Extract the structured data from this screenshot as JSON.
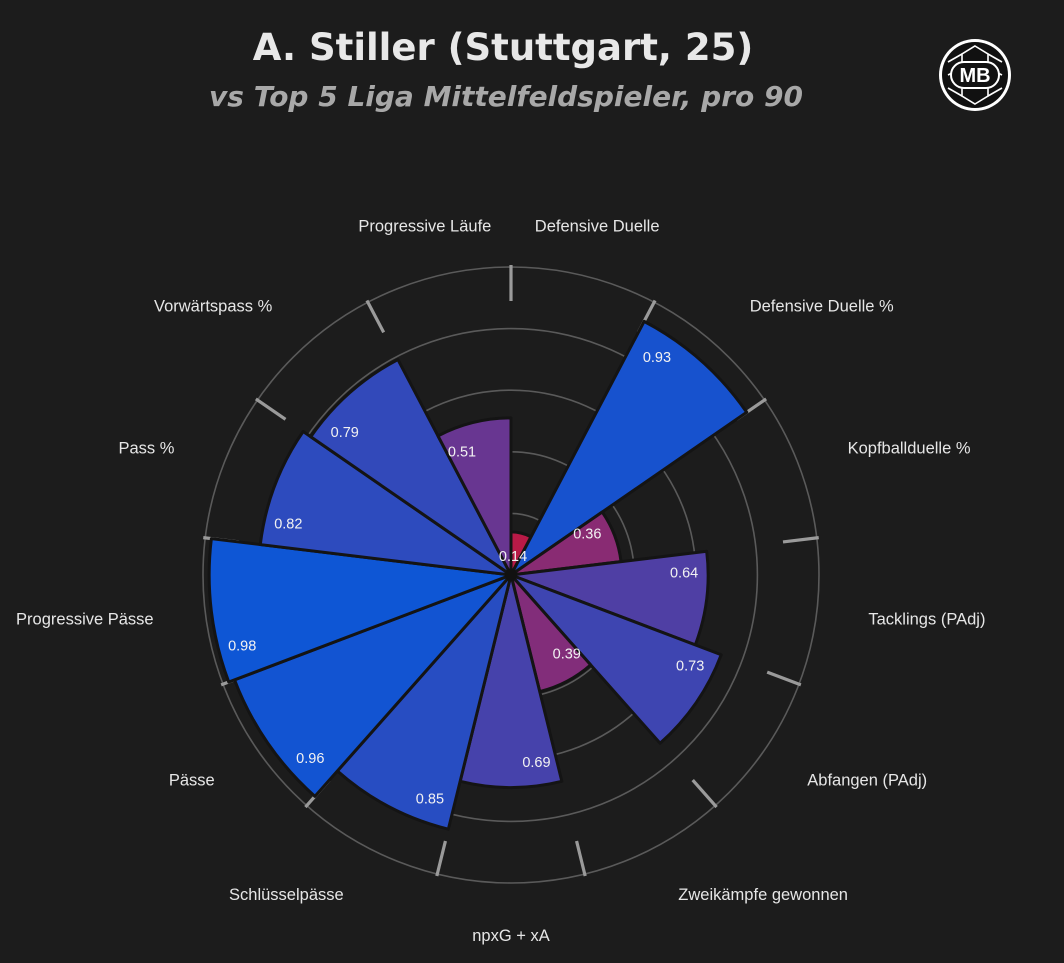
{
  "header": {
    "title": "A. Stiller (Stuttgart, 25)",
    "subtitle": "vs Top 5 Liga Mittelfeldspieler, pro 90",
    "logo_text": "MB"
  },
  "colors": {
    "background": "#1c1c1c",
    "ring": "#5a5a5a",
    "spoke": "#9a9a9a",
    "low": "#d8102a",
    "mid": "#6a3590",
    "high": "#0a57d8"
  },
  "chart_data": {
    "type": "polar-bar",
    "title": "A. Stiller (Stuttgart, 25)",
    "subtitle": "vs Top 5 Liga Mittelfeldspieler, pro 90",
    "rlim": [
      0,
      1
    ],
    "grid": true,
    "categories": [
      "Defensive Duelle",
      "Defensive Duelle %",
      "Kopfballduelle %",
      "Tacklings (PAdj)",
      "Abfangen (PAdj)",
      "Zweikämpfe gewonnen",
      "npxG + xA",
      "Schlüsselpässe",
      "Pässe",
      "Progressive Pässe",
      "Pass %",
      "Vorwärtspass %",
      "Progressive Läufe"
    ],
    "values": [
      0.14,
      0.93,
      0.36,
      0.64,
      0.73,
      0.39,
      0.69,
      0.85,
      0.96,
      0.98,
      0.82,
      0.79,
      0.51
    ],
    "value_labels": [
      "0.14",
      "0.93",
      "0.36",
      "0.64",
      "0.73",
      "0.39",
      "0.69",
      "0.85",
      "0.96",
      "0.98",
      "0.82",
      "0.79",
      "0.51"
    ]
  }
}
